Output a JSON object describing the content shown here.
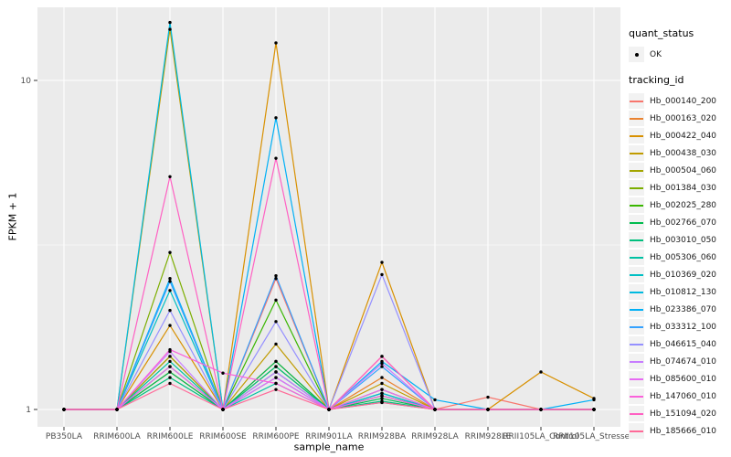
{
  "chart_data": {
    "type": "line",
    "title": "",
    "xlabel": "sample_name",
    "ylabel": "FPKM + 1",
    "y_scale": "log10",
    "ylim": [
      0.89,
      16.7
    ],
    "y_ticks": [
      1,
      10
    ],
    "y_minor_breaks": [
      3.1623
    ],
    "grid": true,
    "panel_bg": "#EBEBEB",
    "grid_color": "#FFFFFF",
    "point_color": "#000000",
    "tick_color": "#333333",
    "tick_label_color": "#4D4D4D",
    "categories": [
      "PB350LA",
      "RRIM600LA",
      "RRIM600LE",
      "RRIM600SE",
      "RRIM600PE",
      "RRIM901LA",
      "RRIM928BA",
      "RRIM928LA",
      "RRIM928LE",
      "RRII105LA_Control",
      "RRII105LA_Stressed"
    ],
    "legend": {
      "position": "right",
      "quant_status_title": "quant_status",
      "quant_status_items": [
        {
          "label": "OK",
          "marker": "point"
        }
      ],
      "tracking_id_title": "tracking_id"
    },
    "series": [
      {
        "name": "Hb_000140_200",
        "color": "#F8766D",
        "values": [
          1,
          1,
          1.45,
          1,
          2.5,
          1,
          1.45,
          1,
          1.09,
          1,
          1
        ]
      },
      {
        "name": "Hb_000163_020",
        "color": "#EA8331",
        "values": [
          1,
          1,
          1.3,
          1,
          1.4,
          1,
          1.25,
          1,
          1,
          1,
          1
        ]
      },
      {
        "name": "Hb_000422_040",
        "color": "#D89000",
        "values": [
          1,
          1,
          1.8,
          1,
          13,
          1,
          2.8,
          1,
          1,
          1.3,
          1.08
        ]
      },
      {
        "name": "Hb_000438_030",
        "color": "#C09B00",
        "values": [
          1,
          1,
          14.3,
          1,
          1.58,
          1,
          1.2,
          1,
          1,
          1,
          1
        ]
      },
      {
        "name": "Hb_000504_060",
        "color": "#A3A500",
        "values": [
          1,
          1,
          1.45,
          1,
          1.35,
          1,
          1.1,
          1,
          1,
          1,
          1
        ]
      },
      {
        "name": "Hb_001384_030",
        "color": "#7CAE00",
        "values": [
          1,
          1,
          3.0,
          1,
          1.3,
          1,
          1.15,
          1,
          1,
          1,
          1
        ]
      },
      {
        "name": "Hb_002025_280",
        "color": "#39B600",
        "values": [
          1,
          1,
          1.35,
          1,
          2.15,
          1,
          1.12,
          1,
          1,
          1,
          1
        ]
      },
      {
        "name": "Hb_002766_070",
        "color": "#00BB4E",
        "values": [
          1,
          1,
          1.3,
          1,
          1.4,
          1,
          1.08,
          1,
          1,
          1,
          1
        ]
      },
      {
        "name": "Hb_003010_050",
        "color": "#00BF7D",
        "values": [
          1,
          1,
          1.25,
          1,
          1.35,
          1,
          1.06,
          1,
          1,
          1,
          1
        ]
      },
      {
        "name": "Hb_005306_060",
        "color": "#00C1A3",
        "values": [
          1,
          1,
          1.4,
          1,
          1.2,
          1,
          1.05,
          1,
          1,
          1,
          1
        ]
      },
      {
        "name": "Hb_010369_020",
        "color": "#00BFC4",
        "values": [
          1,
          1,
          2.3,
          1,
          1.3,
          1,
          1.1,
          1,
          1,
          1,
          1
        ]
      },
      {
        "name": "Hb_010812_130",
        "color": "#00BAE0",
        "values": [
          1,
          1,
          15,
          1,
          1.25,
          1,
          1.12,
          1,
          1,
          1,
          1
        ]
      },
      {
        "name": "Hb_023386_070",
        "color": "#00B0F6",
        "values": [
          1,
          1,
          2.5,
          1,
          7.7,
          1,
          1.4,
          1.07,
          1,
          1,
          1.07
        ]
      },
      {
        "name": "Hb_033312_100",
        "color": "#35A2FF",
        "values": [
          1,
          1,
          2.45,
          1,
          2.55,
          1,
          1.35,
          1,
          1,
          1,
          1
        ]
      },
      {
        "name": "Hb_046615_040",
        "color": "#9590FF",
        "values": [
          1,
          1,
          2.0,
          1,
          1.85,
          1,
          2.57,
          1,
          1,
          1,
          1
        ]
      },
      {
        "name": "Hb_074674_010",
        "color": "#C77CFF",
        "values": [
          1,
          1,
          1.5,
          1,
          1.3,
          1,
          1.38,
          1,
          1,
          1,
          1
        ]
      },
      {
        "name": "Hb_085600_010",
        "color": "#E76BF3",
        "values": [
          1,
          1,
          1.35,
          1,
          1.25,
          1,
          1.15,
          1,
          1,
          1,
          1
        ]
      },
      {
        "name": "Hb_147060_010",
        "color": "#FA62DB",
        "values": [
          1,
          1,
          1.52,
          1.29,
          1.2,
          1,
          1.1,
          1,
          1,
          1,
          1
        ]
      },
      {
        "name": "Hb_151094_020",
        "color": "#FF61C3",
        "values": [
          1,
          1,
          5.1,
          1,
          5.8,
          1,
          1.45,
          1,
          1,
          1,
          1
        ]
      },
      {
        "name": "Hb_185666_010",
        "color": "#FF6A98",
        "values": [
          1,
          1,
          1.2,
          1,
          1.15,
          1,
          1.05,
          1,
          1,
          1,
          1
        ]
      }
    ]
  }
}
